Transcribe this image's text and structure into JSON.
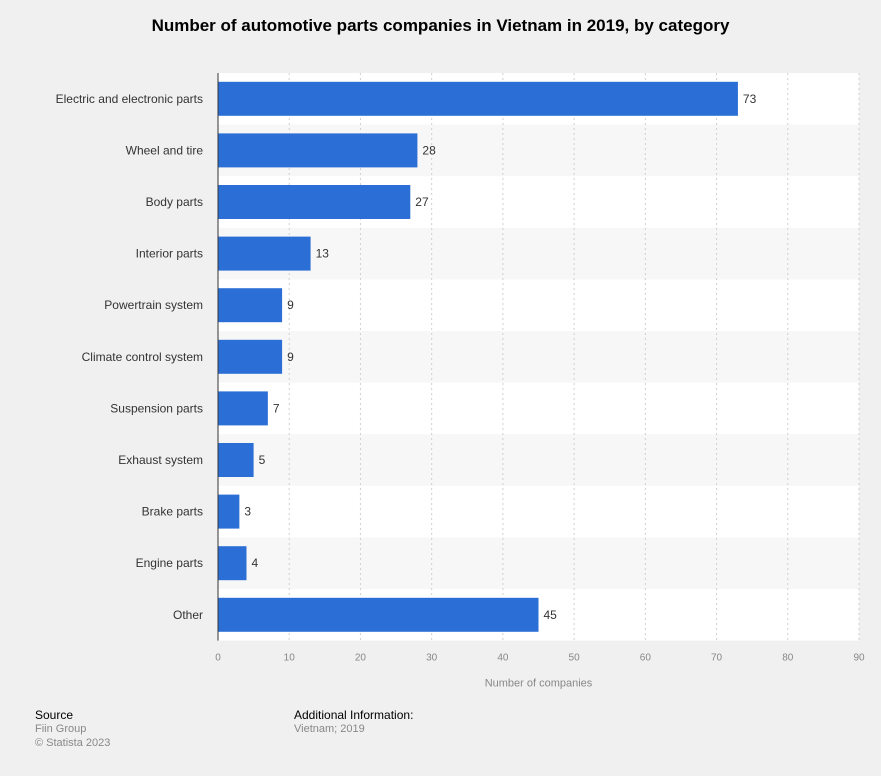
{
  "chart_data": {
    "type": "bar",
    "orientation": "horizontal",
    "title": "Number of automotive parts companies in Vietnam in 2019, by category",
    "xlabel": "Number of companies",
    "ylabel": "",
    "categories": [
      "Electric and electronic parts",
      "Wheel and tire",
      "Body parts",
      "Interior parts",
      "Powertrain system",
      "Climate control system",
      "Suspension parts",
      "Exhaust system",
      "Brake parts",
      "Engine parts",
      "Other"
    ],
    "values": [
      73,
      28,
      27,
      13,
      9,
      9,
      7,
      5,
      3,
      4,
      45
    ],
    "xlim": [
      0,
      90
    ],
    "xticks": [
      0,
      10,
      20,
      30,
      40,
      50,
      60,
      70,
      80,
      90
    ],
    "grid": true,
    "bar_color": "#2b6fd6"
  },
  "footer": {
    "source_label": "Source",
    "source_lines": [
      "Fiin Group",
      "© Statista 2023"
    ],
    "info_label": "Additional Information:",
    "info_lines": [
      "Vietnam; 2019"
    ]
  }
}
